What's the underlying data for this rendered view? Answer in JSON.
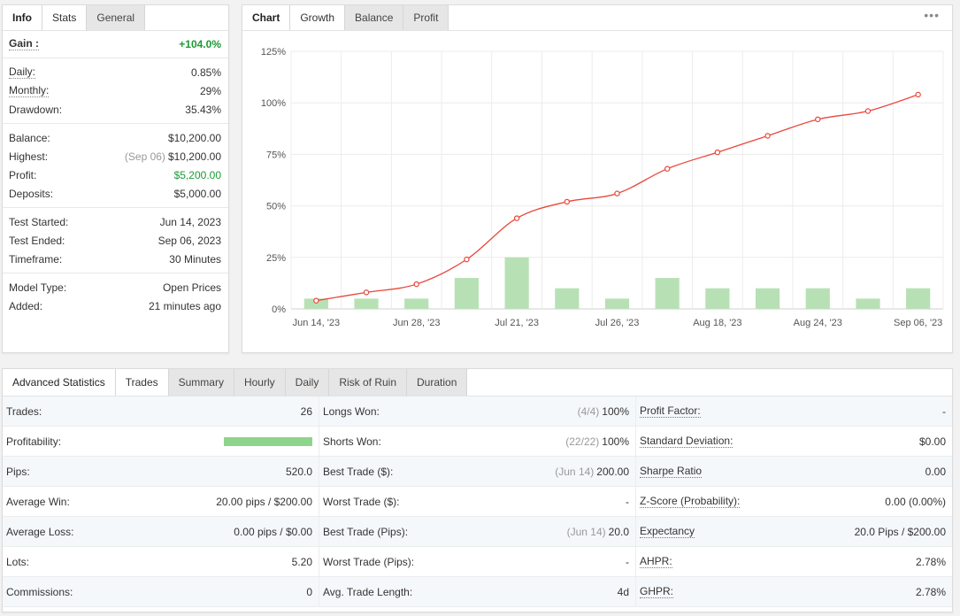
{
  "info_panel": {
    "tabs": [
      {
        "label": "Info"
      },
      {
        "label": "Stats"
      },
      {
        "label": "General"
      }
    ],
    "gain": {
      "label": "Gain :",
      "value": "+104.0%"
    },
    "group1": [
      {
        "label": "Daily:",
        "value": "0.85%"
      },
      {
        "label": "Monthly:",
        "value": "29%"
      },
      {
        "label": "Drawdown:",
        "value": "35.43%"
      }
    ],
    "group2": [
      {
        "label": "Balance:",
        "value": "$10,200.00"
      },
      {
        "label": "Highest:",
        "note": "(Sep 06)",
        "value": "$10,200.00"
      },
      {
        "label": "Profit:",
        "value": "$5,200.00"
      },
      {
        "label": "Deposits:",
        "value": "$5,000.00"
      }
    ],
    "group3": [
      {
        "label": "Test Started:",
        "value": "Jun 14, 2023"
      },
      {
        "label": "Test Ended:",
        "value": "Sep 06, 2023"
      },
      {
        "label": "Timeframe:",
        "value": "30 Minutes"
      }
    ],
    "group4": [
      {
        "label": "Model Type:",
        "value": "Open Prices"
      },
      {
        "label": "Added:",
        "value": "21 minutes ago"
      }
    ]
  },
  "chart_panel": {
    "tabs": [
      {
        "label": "Chart"
      },
      {
        "label": "Growth"
      },
      {
        "label": "Balance"
      },
      {
        "label": "Profit"
      }
    ],
    "menu_label": "•••"
  },
  "chart_data": {
    "type": "line",
    "x": [
      "Jun 14, '23",
      "",
      "Jun 28, '23",
      "",
      "Jul 21, '23",
      "",
      "Jul 26, '23",
      "",
      "Aug 18, '23",
      "",
      "Aug 24, '23",
      "",
      "Sep 06, '23"
    ],
    "y_tick_labels": [
      "0%",
      "25%",
      "50%",
      "75%",
      "100%",
      "125%"
    ],
    "ylim": [
      0,
      125
    ],
    "series": [
      {
        "values": [
          4,
          8,
          12,
          24,
          44,
          52,
          56,
          68,
          76,
          84,
          92,
          96,
          104
        ]
      },
      {
        "values": [
          5,
          5,
          5,
          15,
          25,
          10,
          5,
          15,
          10,
          10,
          10,
          5,
          10
        ]
      }
    ],
    "grid": true,
    "colors": {
      "line": "#e8473c",
      "bar": "#b7e1b5"
    }
  },
  "advanced": {
    "tabs": [
      {
        "label": "Advanced Statistics"
      },
      {
        "label": "Trades"
      },
      {
        "label": "Summary"
      },
      {
        "label": "Hourly"
      },
      {
        "label": "Daily"
      },
      {
        "label": "Risk of Ruin"
      },
      {
        "label": "Duration"
      }
    ],
    "col1": [
      {
        "label": "Trades:",
        "value": "26"
      },
      {
        "label": "Profitability:",
        "value_fraction": 1.0
      },
      {
        "label": "Pips:",
        "value": "520.0"
      },
      {
        "label": "Average Win:",
        "value": "20.00 pips / $200.00"
      },
      {
        "label": "Average Loss:",
        "value": "0.00 pips / $0.00"
      },
      {
        "label": "Lots:",
        "value": "5.20"
      },
      {
        "label": "Commissions:",
        "value": "0"
      }
    ],
    "col2": [
      {
        "label": "Longs Won:",
        "note": "(4/4)",
        "value": "100%"
      },
      {
        "label": "Shorts Won:",
        "note": "(22/22)",
        "value": "100%"
      },
      {
        "label": "Best Trade ($):",
        "note": "(Jun 14)",
        "value": "200.00"
      },
      {
        "label": "Worst Trade ($):",
        "value": "-"
      },
      {
        "label": "Best Trade (Pips):",
        "note": "(Jun 14)",
        "value": "20.0"
      },
      {
        "label": "Worst Trade (Pips):",
        "value": "-"
      },
      {
        "label": "Avg. Trade Length:",
        "value": "4d"
      }
    ],
    "col3": [
      {
        "label": "Profit Factor:",
        "value": "-"
      },
      {
        "label": "Standard Deviation:",
        "value": "$0.00"
      },
      {
        "label": "Sharpe Ratio",
        "value": "0.00"
      },
      {
        "label": "Z-Score (Probability):",
        "value": "0.00 (0.00%)"
      },
      {
        "label": "Expectancy",
        "value": "20.0 Pips / $200.00"
      },
      {
        "label": "AHPR:",
        "value": "2.78%"
      },
      {
        "label": "GHPR:",
        "value": "2.78%"
      }
    ]
  }
}
